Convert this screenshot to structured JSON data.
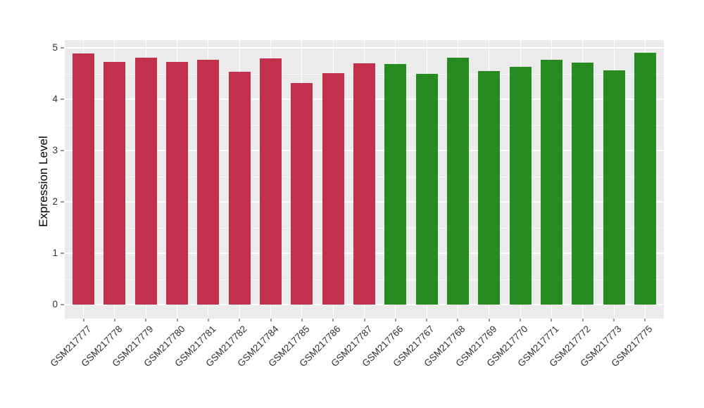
{
  "chart_data": {
    "type": "bar",
    "title": "",
    "xlabel": "",
    "ylabel": "Expression Level",
    "ylim": [
      0,
      5
    ],
    "yticks": [
      0,
      1,
      2,
      3,
      4,
      5
    ],
    "minor_grid_interval": 0.5,
    "grid": "on",
    "legend": "none",
    "categories": [
      "GSM217777",
      "GSM217778",
      "GSM217779",
      "GSM217780",
      "GSM217781",
      "GSM217782",
      "GSM217784",
      "GSM217785",
      "GSM217786",
      "GSM217787",
      "GSM217766",
      "GSM217767",
      "GSM217768",
      "GSM217769",
      "GSM217770",
      "GSM217771",
      "GSM217772",
      "GSM217773",
      "GSM217775"
    ],
    "values": [
      4.89,
      4.73,
      4.81,
      4.72,
      4.77,
      4.54,
      4.8,
      4.32,
      4.51,
      4.7,
      4.68,
      4.5,
      4.81,
      4.55,
      4.63,
      4.77,
      4.71,
      4.56,
      4.9
    ],
    "bar_colors": [
      "#C2314B",
      "#C2314B",
      "#C2314B",
      "#C2314B",
      "#C2314B",
      "#C2314B",
      "#C2314B",
      "#C2314B",
      "#C2314B",
      "#C2314B",
      "#288B22",
      "#288B22",
      "#288B22",
      "#288B22",
      "#288B22",
      "#288B22",
      "#288B22",
      "#288B22",
      "#288B22"
    ],
    "group_colors": {
      "red": "#C2314B",
      "green": "#288B22"
    },
    "panel_bg": "#EBEBEB",
    "grid_color": "#FFFFFF",
    "tick_color": "#9a9a9a",
    "axis_text_color": "#303030"
  }
}
